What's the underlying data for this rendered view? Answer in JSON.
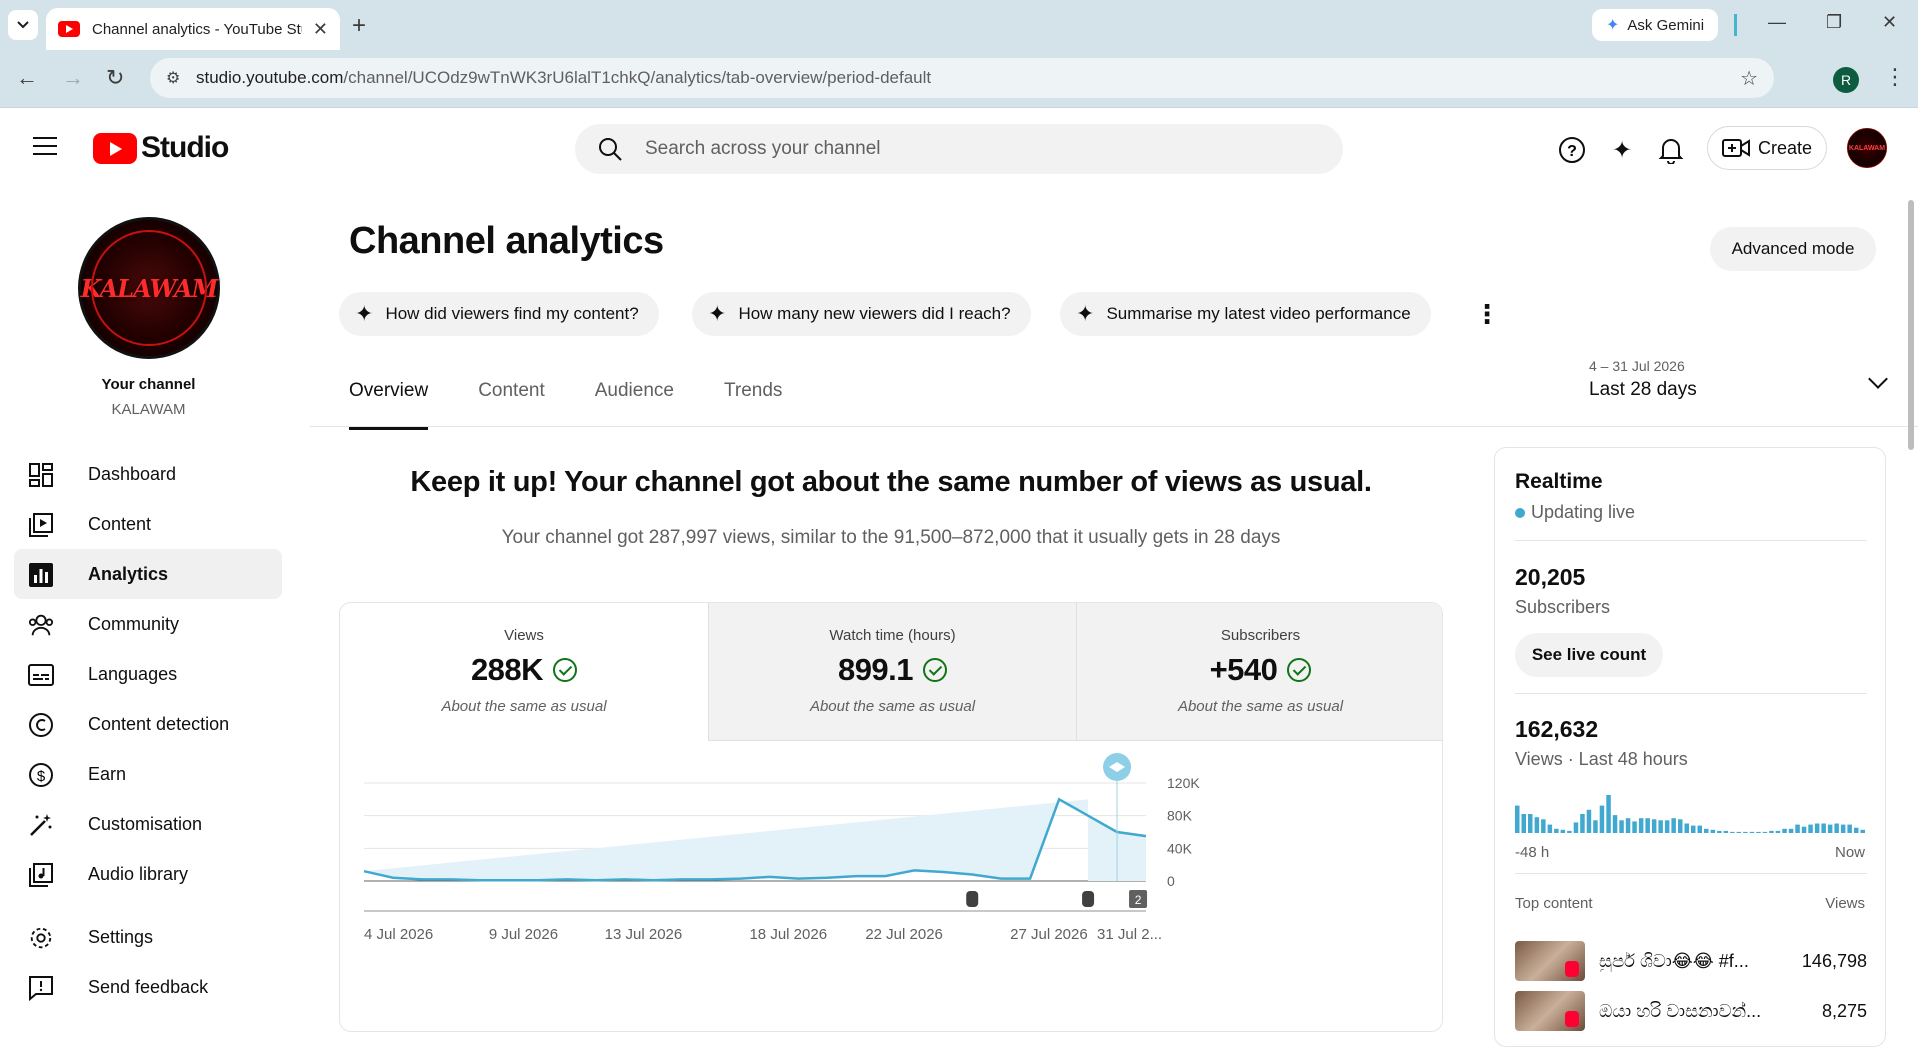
{
  "browser": {
    "tab_title": "Channel analytics - YouTube Studio",
    "new_tab": "+",
    "gemini_label": "Ask Gemini",
    "url_host": "studio.youtube.com",
    "url_path": "/channel/UCOdz9wTnWK3rU6lalT1chkQ/analytics/tab-overview/period-default",
    "profile_initial": "R"
  },
  "header": {
    "logo_text": "Studio",
    "search_placeholder": "Search across your channel",
    "create_label": "Create",
    "avatar_text": "KALAWAM"
  },
  "sidebar": {
    "avatar_text": "KALAWAM",
    "your_channel": "Your channel",
    "channel_name": "KALAWAM",
    "items": [
      {
        "label": "Dashboard"
      },
      {
        "label": "Content"
      },
      {
        "label": "Analytics"
      },
      {
        "label": "Community"
      },
      {
        "label": "Languages"
      },
      {
        "label": "Content detection"
      },
      {
        "label": "Earn"
      },
      {
        "label": "Customisation"
      },
      {
        "label": "Audio library"
      },
      {
        "label": "Settings"
      },
      {
        "label": "Send feedback"
      }
    ]
  },
  "main": {
    "title": "Channel analytics",
    "advanced_mode": "Advanced mode",
    "chips": [
      "How did viewers find my content?",
      "How many new viewers did I reach?",
      "Summarise my latest video performance"
    ],
    "tabs": [
      "Overview",
      "Content",
      "Audience",
      "Trends"
    ],
    "date_range": {
      "dates": "4 – 31 Jul 2026",
      "label": "Last 28 days"
    },
    "headline": "Keep it up! Your channel got about the same number of views as usual.",
    "subline": "Your channel got 287,997 views, similar to the 91,500–872,000 that it usually gets in 28 days",
    "metrics": [
      {
        "label": "Views",
        "value": "288K",
        "note": "About the same as usual"
      },
      {
        "label": "Watch time (hours)",
        "value": "899.1",
        "note": "About the same as usual"
      },
      {
        "label": "Subscribers",
        "value": "+540",
        "note": "About the same as usual"
      }
    ]
  },
  "chart_data": {
    "type": "area",
    "title": "",
    "xlabel": "",
    "ylabel": "",
    "x": [
      "4 Jul",
      "5 Jul",
      "6 Jul",
      "7 Jul",
      "8 Jul",
      "9 Jul",
      "10 Jul",
      "11 Jul",
      "12 Jul",
      "13 Jul",
      "14 Jul",
      "15 Jul",
      "16 Jul",
      "17 Jul",
      "18 Jul",
      "19 Jul",
      "20 Jul",
      "21 Jul",
      "22 Jul",
      "23 Jul",
      "24 Jul",
      "25 Jul",
      "26 Jul",
      "27 Jul",
      "28 Jul",
      "29 Jul",
      "30 Jul",
      "31 Jul"
    ],
    "series": [
      {
        "values": [
          12000,
          4000,
          2000,
          2000,
          1000,
          1000,
          1000,
          2000,
          1000,
          2000,
          1000,
          2000,
          2000,
          3000,
          5000,
          3000,
          4000,
          6000,
          6000,
          13000,
          11000,
          8000,
          3000,
          3000,
          100000,
          80000,
          60000,
          55000
        ]
      }
    ],
    "ylim": [
      0,
      120000
    ],
    "y_ticks": [
      "120K",
      "80K",
      "40K",
      "0"
    ],
    "x_tick_labels": [
      "4 Jul 2026",
      "9 Jul 2026",
      "13 Jul 2026",
      "18 Jul 2026",
      "22 Jul 2026",
      "27 Jul 2026",
      "31 Jul 2..."
    ],
    "badge_count": "2"
  },
  "realtime": {
    "title": "Realtime",
    "status": "Updating live",
    "subscribers": "20,205",
    "subscribers_label": "Subscribers",
    "live_count_btn": "See live count",
    "views": "162,632",
    "views_label": "Views · Last 48 hours",
    "axis_start": "-48 h",
    "axis_end": "Now",
    "hourly_views": [
      26,
      18,
      18,
      15,
      13,
      8,
      4,
      3,
      2,
      10,
      18,
      22,
      12,
      26,
      36,
      17,
      12,
      14,
      11,
      14,
      14,
      13,
      12,
      12,
      14,
      13,
      9,
      7,
      7,
      4,
      3,
      2,
      2,
      1,
      1,
      1,
      1,
      1,
      1,
      2,
      2,
      4,
      4,
      8,
      6,
      8,
      9,
      9,
      8,
      9,
      8,
      8,
      5,
      3
    ],
    "top_content_label": "Top content",
    "views_col": "Views",
    "top_content": [
      {
        "title": "සුපර් ශිවා😂😂 #f...",
        "views": "146,798"
      },
      {
        "title": "ඔයා හරි වාසනාවන්...",
        "views": "8,275"
      }
    ]
  }
}
